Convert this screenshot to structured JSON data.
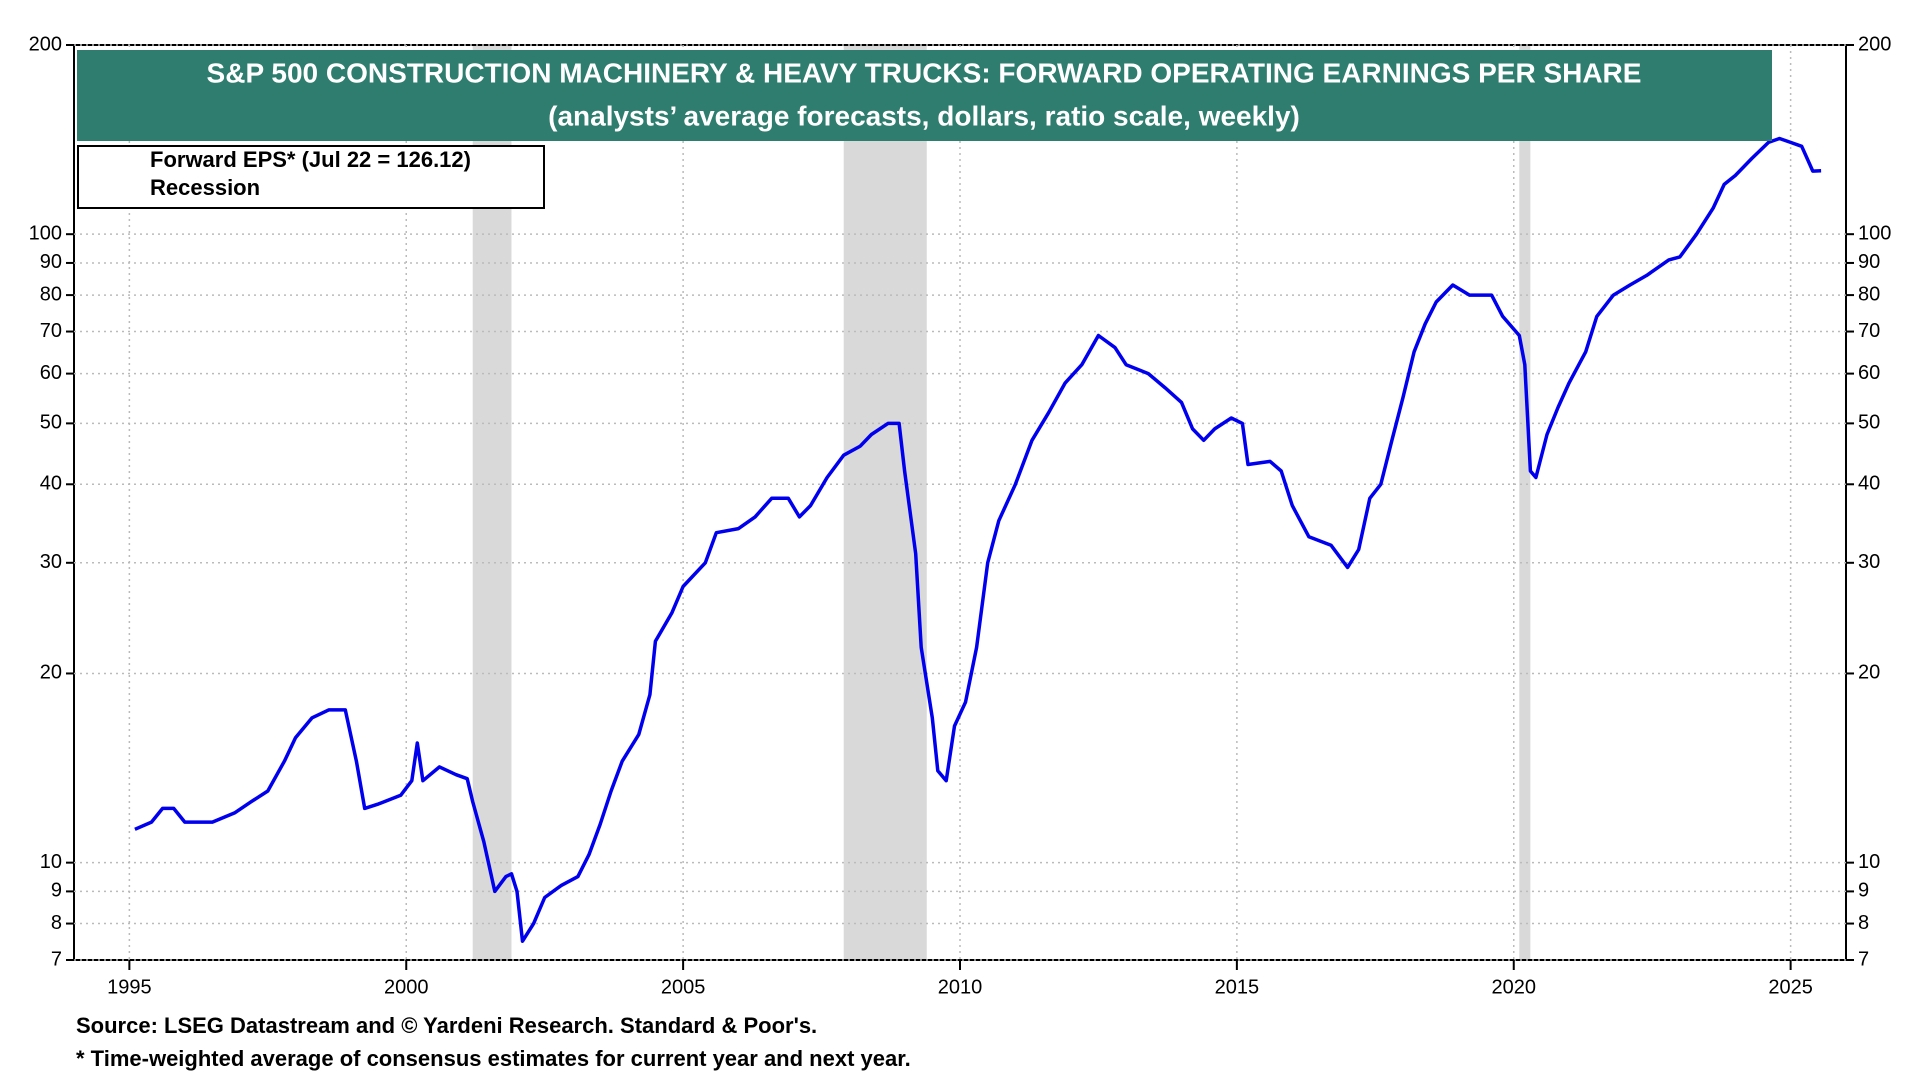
{
  "chart_data": {
    "type": "line",
    "title": "S&P 500 CONSTRUCTION MACHINERY & HEAVY TRUCKS: FORWARD OPERATING EARNINGS PER SHARE",
    "subtitle": "(analysts’ average forecasts, dollars, ratio scale, weekly)",
    "source": "Source: LSEG Datastream and © Yardeni Research. Standard & Poor's.",
    "footnote": "* Time-weighted average of consensus estimates for current year and next year.",
    "log_scale": true,
    "grid": true,
    "legend_position": "upper left",
    "xlim": [
      1994,
      2026
    ],
    "xticks": [
      1995,
      2000,
      2005,
      2010,
      2015,
      2020,
      2025
    ],
    "ylim": [
      7,
      200
    ],
    "yticks": [
      7,
      8,
      9,
      10,
      20,
      30,
      40,
      50,
      60,
      70,
      80,
      90,
      100,
      200
    ],
    "recession_name": "Recession",
    "recession_color": "#d9d9d9",
    "recessions": [
      [
        2001.2,
        2001.9
      ],
      [
        2007.9,
        2009.4
      ],
      [
        2020.1,
        2020.3
      ]
    ],
    "x": [
      1995.1,
      1995.4,
      1995.6,
      1995.8,
      1996.0,
      1996.5,
      1996.9,
      1997.2,
      1997.5,
      1997.8,
      1998.0,
      1998.3,
      1998.6,
      1998.9,
      1999.1,
      1999.25,
      1999.5,
      1999.9,
      2000.1,
      2000.2,
      2000.3,
      2000.6,
      2000.9,
      2001.1,
      2001.2,
      2001.4,
      2001.6,
      2001.8,
      2001.9,
      2002.0,
      2002.1,
      2002.3,
      2002.5,
      2002.8,
      2003.1,
      2003.3,
      2003.5,
      2003.7,
      2003.9,
      2004.2,
      2004.4,
      2004.5,
      2004.8,
      2005.0,
      2005.4,
      2005.6,
      2006.0,
      2006.3,
      2006.6,
      2006.9,
      2007.1,
      2007.3,
      2007.6,
      2007.9,
      2008.2,
      2008.4,
      2008.7,
      2008.9,
      2009.0,
      2009.2,
      2009.3,
      2009.5,
      2009.6,
      2009.75,
      2009.9,
      2010.1,
      2010.3,
      2010.5,
      2010.7,
      2011.0,
      2011.3,
      2011.6,
      2011.9,
      2012.2,
      2012.5,
      2012.8,
      2013.0,
      2013.4,
      2013.7,
      2014.0,
      2014.2,
      2014.4,
      2014.6,
      2014.9,
      2015.1,
      2015.2,
      2015.6,
      2015.8,
      2016.0,
      2016.3,
      2016.7,
      2017.0,
      2017.2,
      2017.4,
      2017.6,
      2017.8,
      2018.0,
      2018.2,
      2018.4,
      2018.6,
      2018.9,
      2019.2,
      2019.6,
      2019.8,
      2020.1,
      2020.2,
      2020.3,
      2020.4,
      2020.6,
      2020.8,
      2021.0,
      2021.3,
      2021.5,
      2021.8,
      2022.1,
      2022.4,
      2022.8,
      2023.0,
      2023.3,
      2023.6,
      2023.8,
      2024.0,
      2024.3,
      2024.6,
      2024.8,
      2025.0,
      2025.2,
      2025.4,
      2025.55
    ],
    "series": [
      {
        "name": "Forward EPS* (Jul 22 = 126.12)",
        "color": "#0000ee",
        "values": [
          11.3,
          11.6,
          12.2,
          12.2,
          11.6,
          11.6,
          12.0,
          12.5,
          13.0,
          14.5,
          15.8,
          17.0,
          17.5,
          17.5,
          14.5,
          12.2,
          12.4,
          12.8,
          13.5,
          15.5,
          13.5,
          14.2,
          13.8,
          13.6,
          12.5,
          10.8,
          9.0,
          9.5,
          9.6,
          9.0,
          7.5,
          8.0,
          8.8,
          9.2,
          9.5,
          10.3,
          11.5,
          13.0,
          14.5,
          16.0,
          18.5,
          22.5,
          25.0,
          27.5,
          30.0,
          33.5,
          34.0,
          35.5,
          38.0,
          38.0,
          35.5,
          37.0,
          41.0,
          44.5,
          46.0,
          48.0,
          50.0,
          50.0,
          42.0,
          31.0,
          22.0,
          17.0,
          14.0,
          13.5,
          16.5,
          18.0,
          22.0,
          30.0,
          35.0,
          40.0,
          47.0,
          52.0,
          58.0,
          62.0,
          69.0,
          66.0,
          62.0,
          60.0,
          57.0,
          54.0,
          49.0,
          47.0,
          49.0,
          51.0,
          50.0,
          43.0,
          43.5,
          42.0,
          37.0,
          33.0,
          32.0,
          29.5,
          31.5,
          38.0,
          40.0,
          47.0,
          55.0,
          65.0,
          72.0,
          78.0,
          83.0,
          80.0,
          80.0,
          74.0,
          69.0,
          62.0,
          42.0,
          41.0,
          48.0,
          53.0,
          58.0,
          65.0,
          74.0,
          80.0,
          83.0,
          86.0,
          91.0,
          92.0,
          100.0,
          110.0,
          120.0,
          124.0,
          132.0,
          140.0,
          142.0,
          140.0,
          138.0,
          126.0,
          126.12
        ]
      }
    ]
  }
}
